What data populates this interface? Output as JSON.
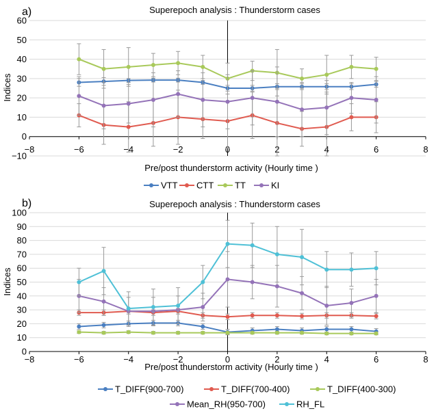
{
  "chart_data": [
    {
      "panel_label": "a)",
      "type": "line",
      "title": "Superepoch  analysis : Thunderstorm cases",
      "xlabel": "Pre/post thunderstorm activity (Hourly time )",
      "ylabel": "Indices",
      "xlim": [
        -8,
        8
      ],
      "ylim": [
        -10,
        60
      ],
      "xticks": [
        "−8",
        "−6",
        "−4",
        "−2",
        "0",
        "2",
        "4",
        "6",
        "8"
      ],
      "yticks": [
        "−10",
        "0",
        "10",
        "20",
        "30",
        "40",
        "50",
        "60"
      ],
      "grid": "horizontal",
      "legend_position": "bottom",
      "x": [
        -6,
        -5,
        -4,
        -3,
        -2,
        -1,
        0,
        1,
        2,
        3,
        4,
        5,
        6
      ],
      "series": [
        {
          "name": "VTT",
          "color": "#4a7fc1",
          "values": [
            28,
            28.5,
            29,
            29.2,
            29.2,
            28,
            25,
            25,
            25.8,
            25.8,
            25.8,
            25.8,
            27
          ],
          "errors": [
            2,
            2,
            1,
            1,
            1,
            1,
            1.5,
            1.5,
            1.5,
            1.5,
            1.5,
            1.5,
            1.5
          ]
        },
        {
          "name": "CTT",
          "color": "#e05a4f",
          "values": [
            11,
            6,
            5,
            7,
            10,
            9,
            8,
            11,
            7,
            4,
            5,
            10,
            10
          ],
          "errors": [
            6,
            10,
            13,
            12,
            14,
            10,
            14,
            12,
            18,
            9,
            18,
            7,
            8
          ]
        },
        {
          "name": "TT",
          "color": "#a8c95a",
          "values": [
            40,
            35,
            36,
            37,
            38,
            36,
            30,
            34,
            33,
            30,
            32,
            36,
            35
          ],
          "errors": [
            8,
            10,
            10,
            6,
            6,
            6,
            8,
            5,
            12,
            5,
            10,
            6,
            6
          ]
        },
        {
          "name": "KI",
          "color": "#9473b8",
          "values": [
            21,
            16,
            17,
            19,
            22,
            19,
            18,
            20,
            18,
            14,
            15,
            20,
            19
          ],
          "errors": [
            10,
            12,
            10,
            14,
            12,
            14,
            14,
            14,
            18,
            14,
            14,
            8,
            12
          ]
        }
      ]
    },
    {
      "panel_label": "b)",
      "type": "line",
      "title": "Superepoch  analysis : Thunderstorm cases",
      "xlabel": "Pre/post thunderstorm activity (Hourly time )",
      "ylabel": "Indices",
      "xlim": [
        -8,
        8
      ],
      "ylim": [
        0,
        100
      ],
      "xticks": [
        "−8",
        "−6",
        "−4",
        "−2",
        "0",
        "2",
        "4",
        "6",
        "8"
      ],
      "yticks": [
        "0",
        "10",
        "20",
        "30",
        "40",
        "50",
        "60",
        "70",
        "80",
        "90",
        "100"
      ],
      "grid": "horizontal",
      "legend_position": "bottom",
      "x": [
        -6,
        -5,
        -4,
        -3,
        -2,
        -1,
        0,
        1,
        2,
        3,
        4,
        5,
        6
      ],
      "series": [
        {
          "name": "T_DIFF(900-700)",
          "color": "#4a7fc1",
          "values": [
            18,
            19,
            20,
            20.5,
            20.5,
            18,
            14,
            15,
            16,
            15,
            16,
            16,
            14.5
          ],
          "errors": [
            2,
            2,
            2,
            2,
            2,
            2,
            2,
            2,
            2,
            2,
            2,
            2,
            2
          ]
        },
        {
          "name": "T_DIFF(700-400)",
          "color": "#e05a4f",
          "values": [
            28,
            28,
            29,
            28,
            29,
            26,
            25,
            26,
            26,
            25.5,
            26,
            26,
            25.5
          ],
          "errors": [
            2,
            2,
            2,
            2,
            2,
            2,
            2,
            2,
            2,
            2,
            2,
            2,
            2
          ]
        },
        {
          "name": "T_DIFF(400-300)",
          "color": "#a8c95a",
          "values": [
            14,
            13.5,
            14,
            13.5,
            13.5,
            13.5,
            13.5,
            13.5,
            13.5,
            13.5,
            13,
            13,
            13
          ],
          "errors": [
            1,
            1,
            1,
            1,
            1,
            1,
            1,
            1,
            1,
            1,
            1,
            1,
            1
          ]
        },
        {
          "name": "Mean_RH(950-700)",
          "color": "#9473b8",
          "values": [
            40,
            36,
            29,
            29,
            30,
            32,
            52,
            50,
            47,
            42,
            33,
            35,
            40
          ],
          "errors": [
            12,
            10,
            10,
            10,
            10,
            10,
            20,
            12,
            15,
            12,
            14,
            10,
            12
          ]
        },
        {
          "name": "RH_FL",
          "color": "#4ec0d6",
          "values": [
            50,
            58,
            31,
            32,
            33,
            50,
            77.5,
            76.5,
            70,
            68,
            59,
            59,
            60
          ],
          "errors": [
            10,
            17,
            12,
            13,
            13,
            12,
            17,
            16,
            20,
            20,
            13,
            12,
            12
          ]
        }
      ]
    }
  ]
}
